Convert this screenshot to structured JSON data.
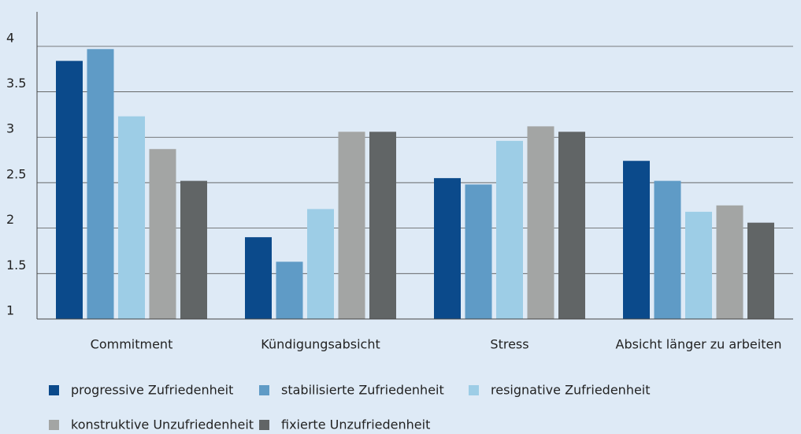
{
  "chart_data": {
    "type": "bar",
    "categories": [
      "Commitment",
      "Kündigungsabsicht",
      "Stress",
      "Absicht länger zu arbeiten"
    ],
    "series": [
      {
        "name": "progressive Zufriedenheit",
        "color": "#0b4a8b",
        "values": [
          3.84,
          1.9,
          2.55,
          2.74
        ]
      },
      {
        "name": "stabilisierte Zufriedenheit",
        "color": "#5f9bc6",
        "values": [
          3.97,
          1.63,
          2.48,
          2.52
        ]
      },
      {
        "name": "resignative Zufriedenheit",
        "color": "#9dcde6",
        "values": [
          3.23,
          2.21,
          2.96,
          2.18
        ]
      },
      {
        "name": "konstruktive Unzufriedenheit",
        "color": "#a3a5a4",
        "values": [
          2.87,
          3.06,
          3.12,
          2.25
        ]
      },
      {
        "name": "fixierte Unzufriedenheit",
        "color": "#616566",
        "values": [
          2.52,
          3.06,
          3.06,
          2.06
        ]
      }
    ],
    "ylim": [
      1,
      4.38
    ],
    "yticks": [
      1,
      1.5,
      2,
      2.5,
      3,
      3.5,
      4
    ],
    "grid": true
  }
}
